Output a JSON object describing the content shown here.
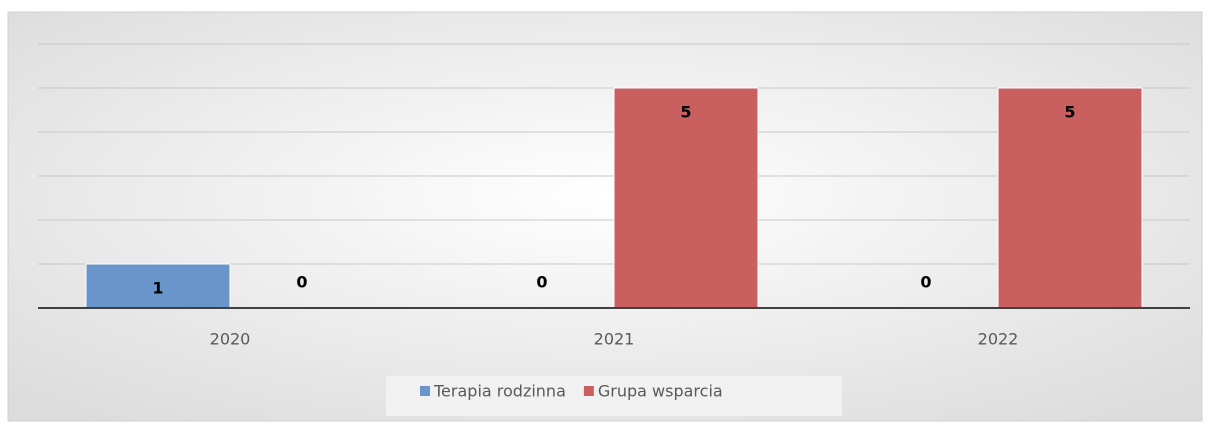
{
  "chart_data": {
    "type": "bar",
    "categories": [
      "2020",
      "2021",
      "2022"
    ],
    "series": [
      {
        "name": "Terapia rodzinna",
        "color": "#6a95cb",
        "values": [
          1,
          0,
          0
        ]
      },
      {
        "name": "Grupa wsparcia",
        "color": "#c9605f",
        "values": [
          0,
          5,
          5
        ]
      }
    ],
    "ylim": [
      0,
      6
    ],
    "yticks": [
      0,
      1,
      2,
      3,
      4,
      5,
      6
    ],
    "grid": true,
    "legend": "bottom"
  }
}
